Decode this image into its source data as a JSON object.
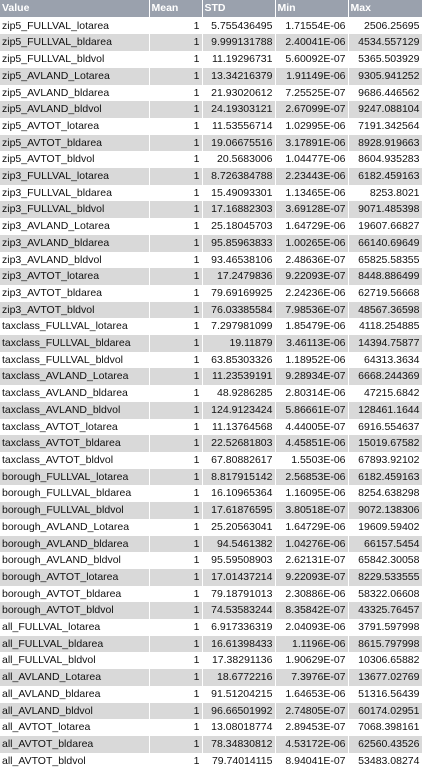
{
  "headers": [
    "Value",
    "Mean",
    "STD",
    "Min",
    "Max"
  ],
  "rows": [
    [
      "zip5_FULLVAL_lotarea",
      "1",
      "5.755436495",
      "1.71554E-06",
      "2506.25695"
    ],
    [
      "zip5_FULLVAL_bldarea",
      "1",
      "9.999131788",
      "2.40041E-06",
      "4534.557129"
    ],
    [
      "zip5_FULLVAL_bldvol",
      "1",
      "11.19296731",
      "5.60092E-07",
      "5365.503929"
    ],
    [
      "zip5_AVLAND_Lotarea",
      "1",
      "13.34216379",
      "1.91149E-06",
      "9305.941252"
    ],
    [
      "zip5_AVLAND_bldarea",
      "1",
      "21.93020612",
      "7.25525E-07",
      "9686.446562"
    ],
    [
      "zip5_AVLAND_bldvol",
      "1",
      "24.19303121",
      "2.67099E-07",
      "9247.088104"
    ],
    [
      "zip5_AVTOT_lotarea",
      "1",
      "11.53556714",
      "1.02995E-06",
      "7191.342564"
    ],
    [
      "zip5_AVTOT_bldarea",
      "1",
      "19.06675516",
      "3.17891E-06",
      "8928.919663"
    ],
    [
      "zip5_AVTOT_bldvol",
      "1",
      "20.5683006",
      "1.04477E-06",
      "8604.935283"
    ],
    [
      "zip3_FULLVAL_lotarea",
      "1",
      "8.726384788",
      "2.23443E-06",
      "6182.459163"
    ],
    [
      "zip3_FULLVAL_bldarea",
      "1",
      "15.49093301",
      "1.13465E-06",
      "8253.8021"
    ],
    [
      "zip3_FULLVAL_bldvol",
      "1",
      "17.16882303",
      "3.69128E-07",
      "9071.485398"
    ],
    [
      "zip3_AVLAND_Lotarea",
      "1",
      "25.18045703",
      "1.64729E-06",
      "19607.66827"
    ],
    [
      "zip3_AVLAND_bldarea",
      "1",
      "95.85963833",
      "1.00265E-06",
      "66140.69649"
    ],
    [
      "zip3_AVLAND_bldvol",
      "1",
      "93.46538106",
      "2.48636E-07",
      "65825.58355"
    ],
    [
      "zip3_AVTOT_lotarea",
      "1",
      "17.2479836",
      "9.22093E-07",
      "8448.886499"
    ],
    [
      "zip3_AVTOT_bldarea",
      "1",
      "79.69169925",
      "2.24236E-06",
      "62719.56668"
    ],
    [
      "zip3_AVTOT_bldvol",
      "1",
      "76.03385584",
      "7.98536E-07",
      "48567.36598"
    ],
    [
      "taxclass_FULLVAL_lotarea",
      "1",
      "7.297981099",
      "1.85479E-06",
      "4118.254885"
    ],
    [
      "taxclass_FULLVAL_bldarea",
      "1",
      "19.11879",
      "3.46113E-06",
      "14394.75877"
    ],
    [
      "taxclass_FULLVAL_bldvol",
      "1",
      "63.85303326",
      "1.18952E-06",
      "64313.3634"
    ],
    [
      "taxclass_AVLAND_Lotarea",
      "1",
      "11.23539191",
      "9.28934E-07",
      "6668.244369"
    ],
    [
      "taxclass_AVLAND_bldarea",
      "1",
      "48.9286285",
      "2.80314E-06",
      "47215.6842"
    ],
    [
      "taxclass_AVLAND_bldvol",
      "1",
      "124.9123424",
      "5.86661E-07",
      "128461.1644"
    ],
    [
      "taxclass_AVTOT_lotarea",
      "1",
      "11.13764568",
      "4.44005E-07",
      "6916.554637"
    ],
    [
      "taxclass_AVTOT_bldarea",
      "1",
      "22.52681803",
      "4.45851E-06",
      "15019.67582"
    ],
    [
      "taxclass_AVTOT_bldvol",
      "1",
      "67.80882617",
      "1.5503E-06",
      "67893.92102"
    ],
    [
      "borough_FULLVAL_lotarea",
      "1",
      "8.817915142",
      "2.56853E-06",
      "6182.459163"
    ],
    [
      "borough_FULLVAL_bldarea",
      "1",
      "16.10965364",
      "1.16095E-06",
      "8254.638298"
    ],
    [
      "borough_FULLVAL_bldvol",
      "1",
      "17.61876595",
      "3.80518E-07",
      "9072.138306"
    ],
    [
      "borough_AVLAND_Lotarea",
      "1",
      "25.20563041",
      "1.64729E-06",
      "19609.59402"
    ],
    [
      "borough_AVLAND_bldarea",
      "1",
      "94.5461382",
      "1.04276E-06",
      "66157.5454"
    ],
    [
      "borough_AVLAND_bldvol",
      "1",
      "95.59508903",
      "2.62131E-07",
      "65842.30058"
    ],
    [
      "borough_AVTOT_lotarea",
      "1",
      "17.01437214",
      "9.22093E-07",
      "8229.533555"
    ],
    [
      "borough_AVTOT_bldarea",
      "1",
      "79.18791013",
      "2.30886E-06",
      "58322.06608"
    ],
    [
      "borough_AVTOT_bldvol",
      "1",
      "74.53583244",
      "8.35842E-07",
      "43325.76457"
    ],
    [
      "all_FULLVAL_lotarea",
      "1",
      "6.917336319",
      "2.04093E-06",
      "3791.597998"
    ],
    [
      "all_FULLVAL_bldarea",
      "1",
      "16.61398433",
      "1.1196E-06",
      "8615.797998"
    ],
    [
      "all_FULLVAL_bldvol",
      "1",
      "17.38291136",
      "1.90629E-07",
      "10306.65882"
    ],
    [
      "all_AVLAND_Lotarea",
      "1",
      "18.6772216",
      "7.3976E-07",
      "13677.02769"
    ],
    [
      "all_AVLAND_bldarea",
      "1",
      "91.51204215",
      "1.64653E-06",
      "51316.56439"
    ],
    [
      "all_AVLAND_bldvol",
      "1",
      "96.66501992",
      "2.74805E-07",
      "60174.02951"
    ],
    [
      "all_AVTOT_lotarea",
      "1",
      "13.08018774",
      "2.89453E-07",
      "7068.398161"
    ],
    [
      "all_AVTOT_bldarea",
      "1",
      "78.34830812",
      "4.53172E-06",
      "62560.43526"
    ],
    [
      "all_AVTOT_bldvol",
      "1",
      "79.74014115",
      "8.94041E-07",
      "53483.08274"
    ]
  ]
}
